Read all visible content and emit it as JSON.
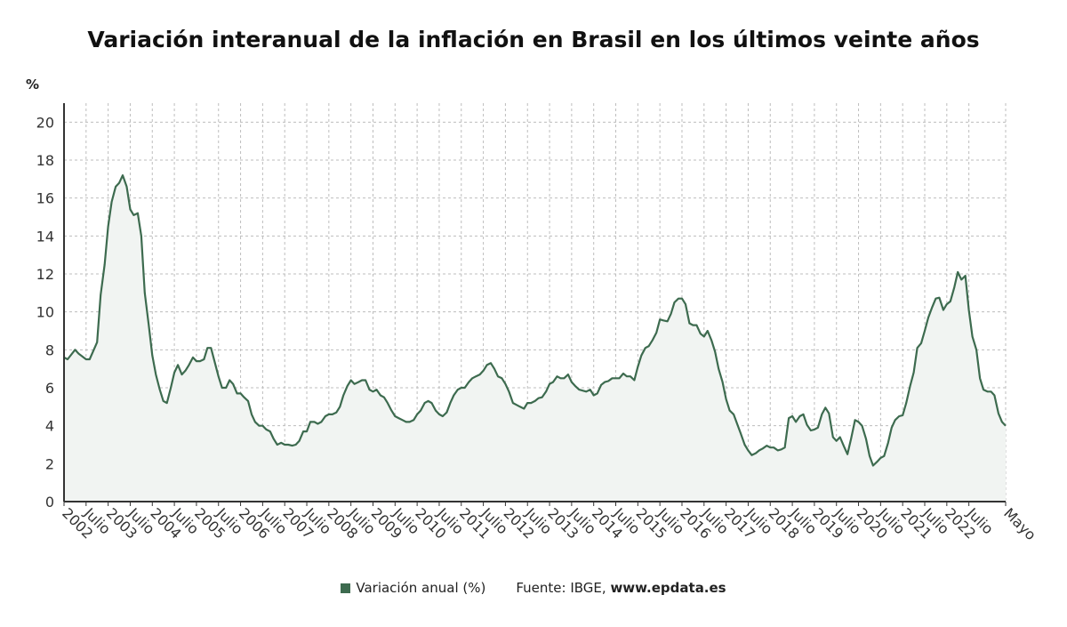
{
  "title": "Variación interanual de la inflación en Brasil en los últimos veinte años",
  "legend": {
    "label": "Variación anual (%)",
    "color": "#3d6b4f"
  },
  "source": {
    "prefix": "Fuente: IBGE,",
    "url": "www.epdata.es"
  },
  "colors": {
    "line": "#3d6b4f",
    "fill": "#f1f4f2",
    "grid": "#bdbdbd",
    "axis": "#333333"
  },
  "chart_data": {
    "type": "area",
    "title": "Variación interanual de la inflación en Brasil en los últimos veinte años",
    "ylabel": "%",
    "xlabel": "",
    "ylim": [
      0,
      21
    ],
    "yticks": [
      0,
      2,
      4,
      6,
      8,
      10,
      12,
      14,
      16,
      18,
      20
    ],
    "xlim": [
      2002.0,
      2023.333
    ],
    "xtick_labels": [
      {
        "x": 2002.0,
        "label": "2002"
      },
      {
        "x": 2002.5,
        "label": "Julio"
      },
      {
        "x": 2003.0,
        "label": "2003"
      },
      {
        "x": 2003.5,
        "label": "Julio"
      },
      {
        "x": 2004.0,
        "label": "2004"
      },
      {
        "x": 2004.5,
        "label": "Julio"
      },
      {
        "x": 2005.0,
        "label": "2005"
      },
      {
        "x": 2005.5,
        "label": "Julio"
      },
      {
        "x": 2006.0,
        "label": "2006"
      },
      {
        "x": 2006.5,
        "label": "Julio"
      },
      {
        "x": 2007.0,
        "label": "2007"
      },
      {
        "x": 2007.5,
        "label": "Julio"
      },
      {
        "x": 2008.0,
        "label": "2008"
      },
      {
        "x": 2008.5,
        "label": "Julio"
      },
      {
        "x": 2009.0,
        "label": "2009"
      },
      {
        "x": 2009.5,
        "label": "Julio"
      },
      {
        "x": 2010.0,
        "label": "2010"
      },
      {
        "x": 2010.5,
        "label": "Julio"
      },
      {
        "x": 2011.0,
        "label": "2011"
      },
      {
        "x": 2011.5,
        "label": "Julio"
      },
      {
        "x": 2012.0,
        "label": "2012"
      },
      {
        "x": 2012.5,
        "label": "Julio"
      },
      {
        "x": 2013.0,
        "label": "2013"
      },
      {
        "x": 2013.5,
        "label": "Julio"
      },
      {
        "x": 2014.0,
        "label": "2014"
      },
      {
        "x": 2014.5,
        "label": "Julio"
      },
      {
        "x": 2015.0,
        "label": "2015"
      },
      {
        "x": 2015.5,
        "label": "Julio"
      },
      {
        "x": 2016.0,
        "label": "2016"
      },
      {
        "x": 2016.5,
        "label": "Julio"
      },
      {
        "x": 2017.0,
        "label": "2017"
      },
      {
        "x": 2017.5,
        "label": "Julio"
      },
      {
        "x": 2018.0,
        "label": "2018"
      },
      {
        "x": 2018.5,
        "label": "Julio"
      },
      {
        "x": 2019.0,
        "label": "2019"
      },
      {
        "x": 2019.5,
        "label": "Julio"
      },
      {
        "x": 2020.0,
        "label": "2020"
      },
      {
        "x": 2020.5,
        "label": "Julio"
      },
      {
        "x": 2021.0,
        "label": "2021"
      },
      {
        "x": 2021.5,
        "label": "Julio"
      },
      {
        "x": 2022.0,
        "label": "2022"
      },
      {
        "x": 2022.5,
        "label": "Julio"
      },
      {
        "x": 2023.333,
        "label": "Mayo"
      }
    ],
    "grid": true,
    "legend_position": "bottom",
    "series": [
      {
        "name": "Variación anual (%)",
        "color": "#3d6b4f",
        "points": [
          [
            2002.0,
            7.6
          ],
          [
            2002.08,
            7.5
          ],
          [
            2002.25,
            8.0
          ],
          [
            2002.33,
            7.8
          ],
          [
            2002.5,
            7.5
          ],
          [
            2002.58,
            7.5
          ],
          [
            2002.75,
            8.4
          ],
          [
            2002.83,
            10.9
          ],
          [
            2002.92,
            12.5
          ],
          [
            2003.0,
            14.5
          ],
          [
            2003.08,
            15.8
          ],
          [
            2003.17,
            16.6
          ],
          [
            2003.25,
            16.8
          ],
          [
            2003.33,
            17.2
          ],
          [
            2003.42,
            16.6
          ],
          [
            2003.5,
            15.4
          ],
          [
            2003.58,
            15.1
          ],
          [
            2003.67,
            15.2
          ],
          [
            2003.75,
            14.0
          ],
          [
            2003.83,
            11.0
          ],
          [
            2003.92,
            9.3
          ],
          [
            2004.0,
            7.7
          ],
          [
            2004.08,
            6.7
          ],
          [
            2004.17,
            5.9
          ],
          [
            2004.25,
            5.3
          ],
          [
            2004.33,
            5.2
          ],
          [
            2004.42,
            6.0
          ],
          [
            2004.5,
            6.8
          ],
          [
            2004.58,
            7.2
          ],
          [
            2004.67,
            6.7
          ],
          [
            2004.75,
            6.9
          ],
          [
            2004.83,
            7.2
          ],
          [
            2004.92,
            7.6
          ],
          [
            2005.0,
            7.4
          ],
          [
            2005.08,
            7.4
          ],
          [
            2005.17,
            7.5
          ],
          [
            2005.25,
            8.1
          ],
          [
            2005.33,
            8.1
          ],
          [
            2005.42,
            7.3
          ],
          [
            2005.5,
            6.6
          ],
          [
            2005.58,
            6.0
          ],
          [
            2005.67,
            6.0
          ],
          [
            2005.75,
            6.4
          ],
          [
            2005.83,
            6.2
          ],
          [
            2005.92,
            5.7
          ],
          [
            2006.0,
            5.7
          ],
          [
            2006.08,
            5.5
          ],
          [
            2006.17,
            5.3
          ],
          [
            2006.25,
            4.6
          ],
          [
            2006.33,
            4.2
          ],
          [
            2006.42,
            4.0
          ],
          [
            2006.5,
            4.0
          ],
          [
            2006.58,
            3.8
          ],
          [
            2006.67,
            3.7
          ],
          [
            2006.75,
            3.3
          ],
          [
            2006.83,
            3.0
          ],
          [
            2006.92,
            3.1
          ],
          [
            2007.0,
            3.0
          ],
          [
            2007.08,
            3.0
          ],
          [
            2007.17,
            2.95
          ],
          [
            2007.25,
            3.0
          ],
          [
            2007.33,
            3.2
          ],
          [
            2007.42,
            3.7
          ],
          [
            2007.5,
            3.7
          ],
          [
            2007.58,
            4.2
          ],
          [
            2007.67,
            4.2
          ],
          [
            2007.75,
            4.1
          ],
          [
            2007.83,
            4.2
          ],
          [
            2007.92,
            4.5
          ],
          [
            2008.0,
            4.6
          ],
          [
            2008.08,
            4.6
          ],
          [
            2008.17,
            4.7
          ],
          [
            2008.25,
            5.0
          ],
          [
            2008.33,
            5.6
          ],
          [
            2008.42,
            6.1
          ],
          [
            2008.5,
            6.4
          ],
          [
            2008.58,
            6.2
          ],
          [
            2008.67,
            6.3
          ],
          [
            2008.75,
            6.4
          ],
          [
            2008.83,
            6.4
          ],
          [
            2008.92,
            5.9
          ],
          [
            2009.0,
            5.8
          ],
          [
            2009.08,
            5.9
          ],
          [
            2009.17,
            5.6
          ],
          [
            2009.25,
            5.5
          ],
          [
            2009.33,
            5.2
          ],
          [
            2009.42,
            4.8
          ],
          [
            2009.5,
            4.5
          ],
          [
            2009.58,
            4.4
          ],
          [
            2009.67,
            4.3
          ],
          [
            2009.75,
            4.2
          ],
          [
            2009.83,
            4.2
          ],
          [
            2009.92,
            4.3
          ],
          [
            2010.0,
            4.6
          ],
          [
            2010.08,
            4.8
          ],
          [
            2010.17,
            5.2
          ],
          [
            2010.25,
            5.3
          ],
          [
            2010.33,
            5.2
          ],
          [
            2010.42,
            4.8
          ],
          [
            2010.5,
            4.6
          ],
          [
            2010.58,
            4.5
          ],
          [
            2010.67,
            4.7
          ],
          [
            2010.75,
            5.2
          ],
          [
            2010.83,
            5.6
          ],
          [
            2010.92,
            5.9
          ],
          [
            2011.0,
            6.0
          ],
          [
            2011.08,
            6.0
          ],
          [
            2011.17,
            6.3
          ],
          [
            2011.25,
            6.5
          ],
          [
            2011.33,
            6.6
          ],
          [
            2011.42,
            6.7
          ],
          [
            2011.5,
            6.9
          ],
          [
            2011.58,
            7.2
          ],
          [
            2011.67,
            7.3
          ],
          [
            2011.75,
            7.0
          ],
          [
            2011.83,
            6.6
          ],
          [
            2011.92,
            6.5
          ],
          [
            2012.0,
            6.2
          ],
          [
            2012.08,
            5.8
          ],
          [
            2012.17,
            5.2
          ],
          [
            2012.25,
            5.1
          ],
          [
            2012.33,
            5.0
          ],
          [
            2012.42,
            4.9
          ],
          [
            2012.5,
            5.2
          ],
          [
            2012.58,
            5.2
          ],
          [
            2012.67,
            5.3
          ],
          [
            2012.75,
            5.45
          ],
          [
            2012.83,
            5.5
          ],
          [
            2012.92,
            5.8
          ],
          [
            2013.0,
            6.2
          ],
          [
            2013.08,
            6.3
          ],
          [
            2013.17,
            6.6
          ],
          [
            2013.25,
            6.5
          ],
          [
            2013.33,
            6.5
          ],
          [
            2013.42,
            6.7
          ],
          [
            2013.5,
            6.3
          ],
          [
            2013.58,
            6.1
          ],
          [
            2013.67,
            5.9
          ],
          [
            2013.75,
            5.85
          ],
          [
            2013.83,
            5.8
          ],
          [
            2013.92,
            5.9
          ],
          [
            2014.0,
            5.6
          ],
          [
            2014.08,
            5.7
          ],
          [
            2014.17,
            6.15
          ],
          [
            2014.25,
            6.3
          ],
          [
            2014.33,
            6.35
          ],
          [
            2014.42,
            6.5
          ],
          [
            2014.5,
            6.5
          ],
          [
            2014.58,
            6.5
          ],
          [
            2014.67,
            6.75
          ],
          [
            2014.75,
            6.6
          ],
          [
            2014.83,
            6.6
          ],
          [
            2014.92,
            6.4
          ],
          [
            2015.0,
            7.1
          ],
          [
            2015.08,
            7.7
          ],
          [
            2015.17,
            8.1
          ],
          [
            2015.25,
            8.2
          ],
          [
            2015.33,
            8.5
          ],
          [
            2015.42,
            8.9
          ],
          [
            2015.5,
            9.6
          ],
          [
            2015.58,
            9.55
          ],
          [
            2015.67,
            9.5
          ],
          [
            2015.75,
            9.9
          ],
          [
            2015.83,
            10.5
          ],
          [
            2015.92,
            10.7
          ],
          [
            2016.0,
            10.7
          ],
          [
            2016.08,
            10.4
          ],
          [
            2016.17,
            9.4
          ],
          [
            2016.25,
            9.3
          ],
          [
            2016.33,
            9.3
          ],
          [
            2016.42,
            8.85
          ],
          [
            2016.5,
            8.7
          ],
          [
            2016.58,
            9.0
          ],
          [
            2016.67,
            8.5
          ],
          [
            2016.75,
            7.9
          ],
          [
            2016.83,
            7.0
          ],
          [
            2016.92,
            6.3
          ],
          [
            2017.0,
            5.4
          ],
          [
            2017.08,
            4.8
          ],
          [
            2017.17,
            4.6
          ],
          [
            2017.25,
            4.1
          ],
          [
            2017.33,
            3.6
          ],
          [
            2017.42,
            3.0
          ],
          [
            2017.5,
            2.7
          ],
          [
            2017.58,
            2.45
          ],
          [
            2017.67,
            2.55
          ],
          [
            2017.75,
            2.7
          ],
          [
            2017.83,
            2.8
          ],
          [
            2017.92,
            2.95
          ],
          [
            2018.0,
            2.85
          ],
          [
            2018.08,
            2.85
          ],
          [
            2018.17,
            2.7
          ],
          [
            2018.25,
            2.75
          ],
          [
            2018.33,
            2.85
          ],
          [
            2018.42,
            4.4
          ],
          [
            2018.5,
            4.5
          ],
          [
            2018.58,
            4.2
          ],
          [
            2018.67,
            4.5
          ],
          [
            2018.75,
            4.6
          ],
          [
            2018.83,
            4.05
          ],
          [
            2018.92,
            3.75
          ],
          [
            2019.0,
            3.8
          ],
          [
            2019.08,
            3.9
          ],
          [
            2019.17,
            4.6
          ],
          [
            2019.25,
            4.95
          ],
          [
            2019.33,
            4.65
          ],
          [
            2019.42,
            3.4
          ],
          [
            2019.5,
            3.2
          ],
          [
            2019.58,
            3.4
          ],
          [
            2019.67,
            2.9
          ],
          [
            2019.75,
            2.5
          ],
          [
            2019.83,
            3.3
          ],
          [
            2019.92,
            4.3
          ],
          [
            2020.0,
            4.2
          ],
          [
            2020.08,
            4.0
          ],
          [
            2020.17,
            3.3
          ],
          [
            2020.25,
            2.4
          ],
          [
            2020.33,
            1.9
          ],
          [
            2020.42,
            2.1
          ],
          [
            2020.5,
            2.3
          ],
          [
            2020.58,
            2.4
          ],
          [
            2020.67,
            3.1
          ],
          [
            2020.75,
            3.9
          ],
          [
            2020.83,
            4.3
          ],
          [
            2020.92,
            4.5
          ],
          [
            2021.0,
            4.55
          ],
          [
            2021.08,
            5.2
          ],
          [
            2021.17,
            6.1
          ],
          [
            2021.25,
            6.8
          ],
          [
            2021.33,
            8.1
          ],
          [
            2021.42,
            8.35
          ],
          [
            2021.5,
            9.0
          ],
          [
            2021.58,
            9.7
          ],
          [
            2021.67,
            10.25
          ],
          [
            2021.75,
            10.7
          ],
          [
            2021.83,
            10.75
          ],
          [
            2021.92,
            10.1
          ],
          [
            2022.0,
            10.4
          ],
          [
            2022.08,
            10.55
          ],
          [
            2022.17,
            11.3
          ],
          [
            2022.25,
            12.1
          ],
          [
            2022.33,
            11.7
          ],
          [
            2022.42,
            11.9
          ],
          [
            2022.5,
            10.1
          ],
          [
            2022.58,
            8.7
          ],
          [
            2022.67,
            8.0
          ],
          [
            2022.75,
            6.5
          ],
          [
            2022.83,
            5.9
          ],
          [
            2022.92,
            5.8
          ],
          [
            2023.0,
            5.8
          ],
          [
            2023.08,
            5.6
          ],
          [
            2023.17,
            4.65
          ],
          [
            2023.25,
            4.2
          ],
          [
            2023.333,
            4.0
          ]
        ]
      }
    ]
  }
}
